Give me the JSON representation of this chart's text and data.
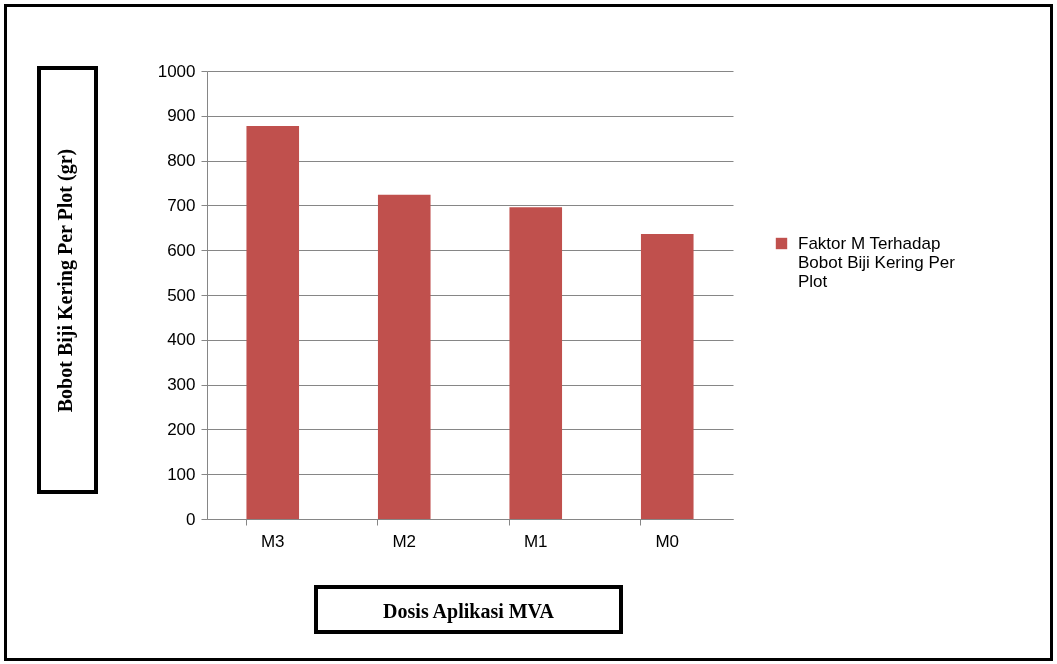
{
  "chart_data": {
    "type": "bar",
    "xlabel": "Dosis Aplikasi MVA",
    "ylabel": "Bobot Biji Kering Per Plot (gr)",
    "categories": [
      "M3",
      "M2",
      "M1",
      "M0"
    ],
    "series": [
      {
        "name": "Faktor M Terhadap Bobot Biji Kering Per Plot",
        "color": "#c0504d",
        "values": [
          877,
          724,
          696,
          636
        ]
      }
    ],
    "ylim": [
      0,
      1000
    ],
    "yticks": [
      0,
      100,
      200,
      300,
      400,
      500,
      600,
      700,
      800,
      900,
      1000
    ],
    "grid": "y",
    "legend": "right"
  }
}
